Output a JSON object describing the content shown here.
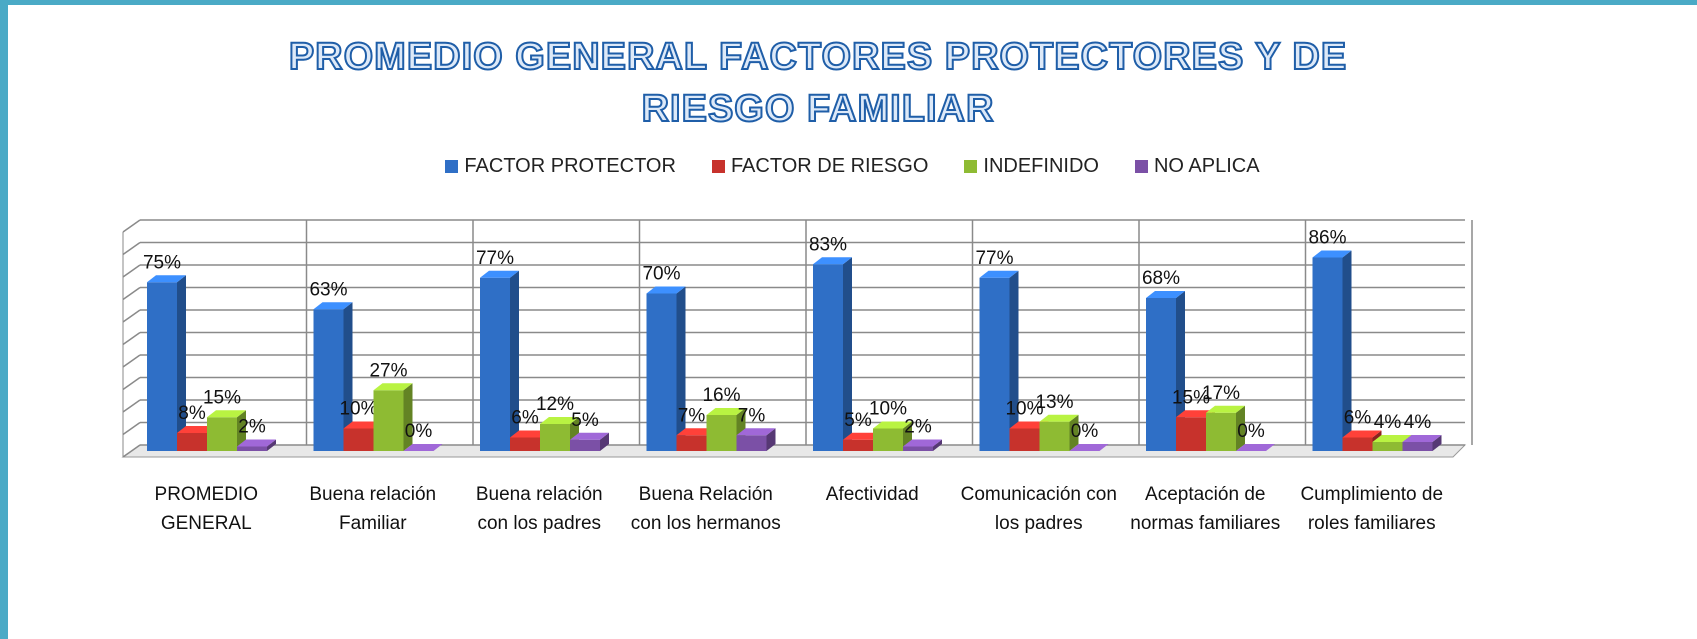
{
  "chart_data": {
    "type": "bar3d",
    "title": "PROMEDIO GENERAL FACTORES PROTECTORES Y DE RIESGO FAMILIAR",
    "categories": [
      "PROMEDIO GENERAL",
      "Buena relación Familiar",
      "Buena relación con los padres",
      "Buena Relación con los hermanos",
      "Afectividad",
      "Comunicación con los padres",
      "Aceptación de normas familiares",
      "Cumplimiento de roles familiares"
    ],
    "series": [
      {
        "name": "FACTOR PROTECTOR",
        "color": "#2f6fc6",
        "values": [
          75,
          63,
          77,
          70,
          83,
          77,
          68,
          86
        ],
        "value_labels": [
          "75%",
          "63%",
          "77%",
          "70%",
          "83%",
          "77%",
          "68%",
          "86%"
        ]
      },
      {
        "name": "FACTOR DE RIESGO",
        "color": "#c7322c",
        "values": [
          8,
          10,
          6,
          7,
          5,
          10,
          15,
          6
        ],
        "value_labels": [
          "8%",
          "10%",
          "6%",
          "7%",
          "5%",
          "10%",
          "15%",
          "6%"
        ]
      },
      {
        "name": "INDEFINIDO",
        "color": "#8ebb33",
        "values": [
          15,
          27,
          12,
          16,
          10,
          13,
          17,
          4
        ],
        "value_labels": [
          "15%",
          "27%",
          "12%",
          "16%",
          "10%",
          "13%",
          "17%",
          "4%"
        ]
      },
      {
        "name": "NO APLICA",
        "color": "#7b50a6",
        "values": [
          2,
          0,
          5,
          7,
          2,
          0,
          0,
          4
        ],
        "value_labels": [
          "2%",
          "0%",
          "5%",
          "7%",
          "2%",
          "0%",
          "0%",
          "4%"
        ]
      }
    ],
    "ylim": [
      0,
      100
    ],
    "yticks": [
      0,
      10,
      20,
      30,
      40,
      50,
      60,
      70,
      80,
      90,
      100
    ],
    "grid": true,
    "legend": "top"
  }
}
